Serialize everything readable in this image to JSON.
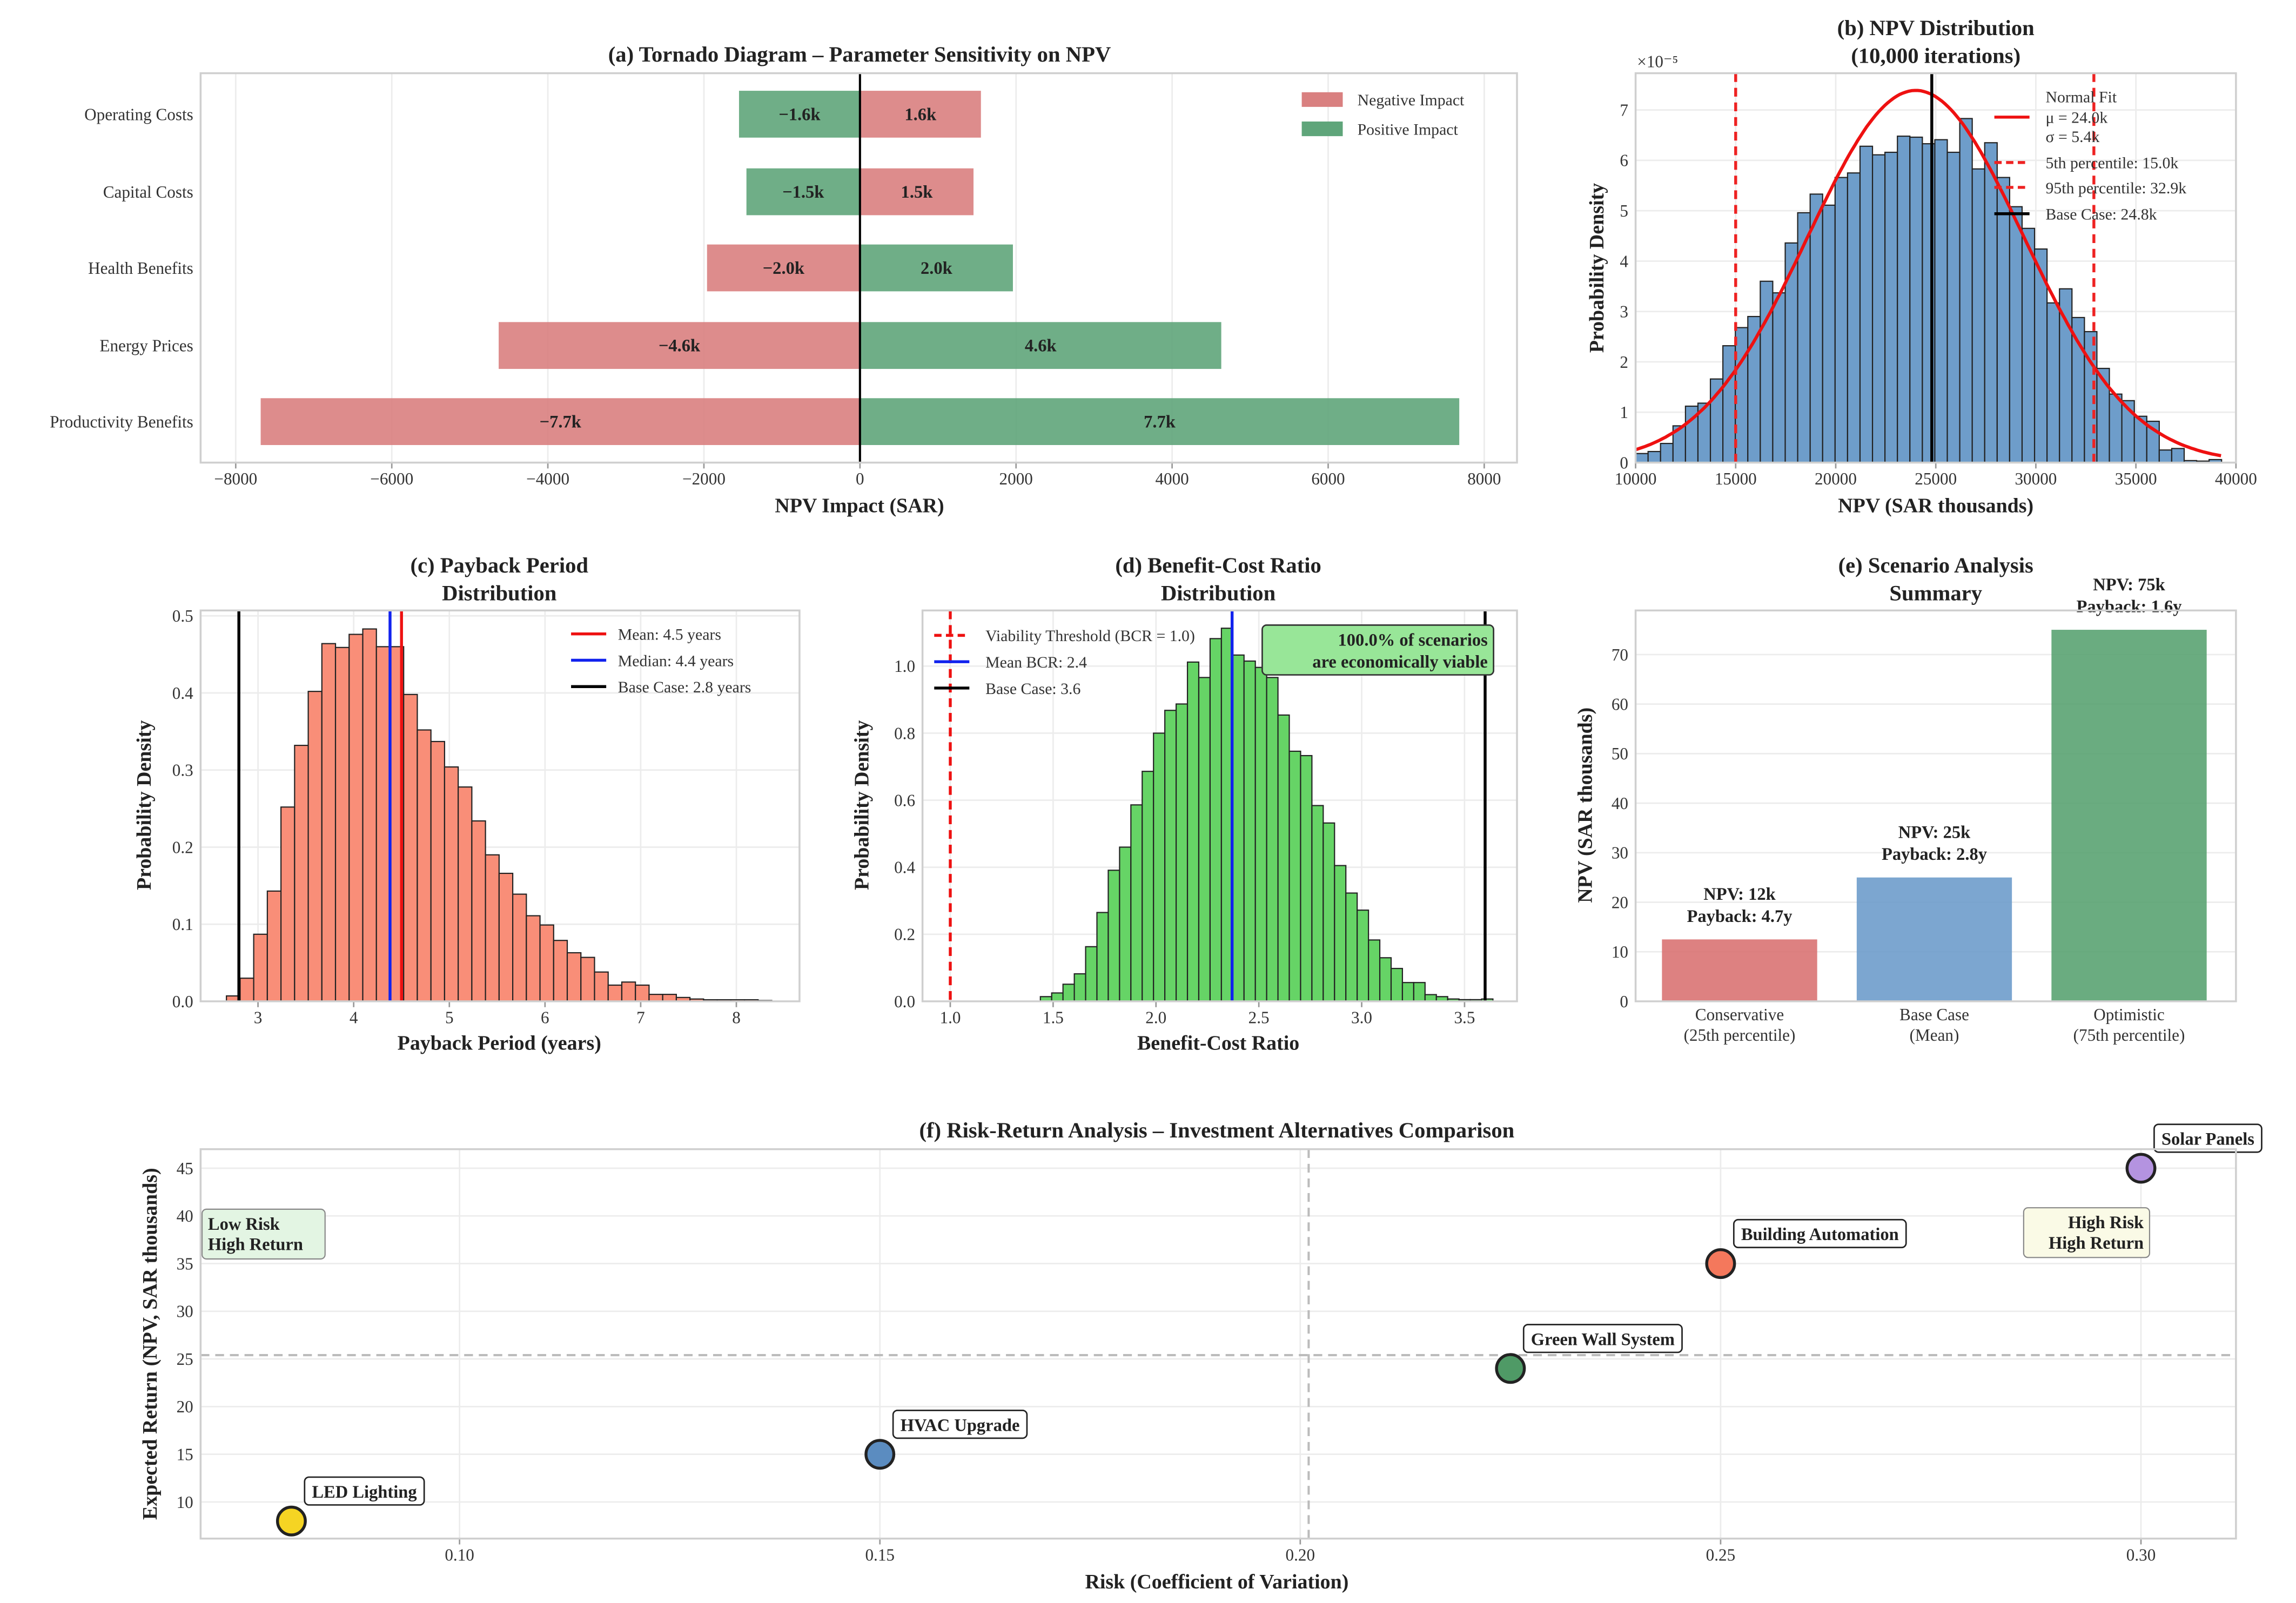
{
  "chart_data": [
    {
      "type": "bar",
      "orientation": "horizontal",
      "title": "(a) Tornado Diagram – Parameter Sensitivity on NPV",
      "xlabel": "NPV Impact (SAR)",
      "xlim": [
        -8450,
        8420
      ],
      "xticks": [
        "−8000",
        "−6000",
        "−4000",
        "−2000",
        "0",
        "2000",
        "4000",
        "6000",
        "8000"
      ],
      "legend": {
        "position": "top-right",
        "entries": [
          {
            "label": "Negative Impact",
            "color": "#d98080"
          },
          {
            "label": "Positive Impact",
            "color": "#5fa57a"
          }
        ]
      },
      "bars": [
        {
          "category": "Operating Costs",
          "low": -1550,
          "high": 1550,
          "low_label": "−1.6k",
          "high_label": "1.6k",
          "low_color": "#5fa57a",
          "high_color": "#d98080"
        },
        {
          "category": "Capital Costs",
          "low": -1455,
          "high": 1455,
          "low_label": "−1.5k",
          "high_label": "1.5k",
          "low_color": "#5fa57a",
          "high_color": "#d98080"
        },
        {
          "category": "Health Benefits",
          "low": -1960,
          "high": 1960,
          "low_label": "−2.0k",
          "high_label": "2.0k",
          "low_color": "#d98080",
          "high_color": "#5fa57a"
        },
        {
          "category": "Energy Prices",
          "low": -4630,
          "high": 4630,
          "low_label": "−4.6k",
          "high_label": "4.6k",
          "low_color": "#d98080",
          "high_color": "#5fa57a"
        },
        {
          "category": "Productivity Benefits",
          "low": -7680,
          "high": 7680,
          "low_label": "−7.7k",
          "high_label": "7.7k",
          "low_color": "#d98080",
          "high_color": "#5fa57a"
        }
      ]
    },
    {
      "type": "bar",
      "subtype": "histogram",
      "title": "(b) NPV Distribution",
      "title_line2": "(10,000 iterations)",
      "xlabel": "NPV (SAR thousands)",
      "ylabel": "Probability Density",
      "y_scale_label": "×10⁻⁵",
      "xlim": [
        10000,
        40000
      ],
      "ylim": [
        0,
        7.73
      ],
      "xticks": [
        "10000",
        "15000",
        "20000",
        "25000",
        "30000",
        "35000",
        "40000"
      ],
      "yticks": [
        "0",
        "1",
        "2",
        "3",
        "4",
        "5",
        "6",
        "7"
      ],
      "bin_start": 10000,
      "bin_width": 623,
      "values": [
        0.18,
        0.22,
        0.38,
        0.73,
        1.12,
        1.18,
        1.66,
        2.32,
        2.68,
        2.9,
        3.6,
        3.37,
        4.36,
        4.96,
        5.33,
        5.11,
        5.66,
        5.75,
        6.28,
        6.11,
        6.16,
        6.48,
        6.46,
        6.33,
        6.41,
        6.16,
        6.83,
        5.83,
        6.35,
        5.66,
        5.08,
        4.65,
        4.24,
        3.17,
        3.45,
        2.88,
        2.6,
        1.87,
        1.36,
        1.23,
        0.92,
        0.82,
        0.25,
        0.28,
        0.04,
        0.03,
        0.06
      ],
      "bar_color": "#6e9dca",
      "normal_fit": {
        "mu": 24000,
        "sigma": 5400,
        "color": "#ee1111"
      },
      "lines": [
        {
          "x": 15000,
          "color": "#ee2222",
          "style": "dashed"
        },
        {
          "x": 32900,
          "color": "#ee2222",
          "style": "dashed"
        },
        {
          "x": 24800,
          "color": "#000000",
          "style": "solid"
        }
      ],
      "legend": {
        "position": "top-right",
        "entries": [
          "Normal Fit",
          "μ = 24.0k",
          "σ = 5.4k",
          "5th percentile: 15.0k",
          "95th percentile: 32.9k",
          "Base Case: 24.8k"
        ]
      }
    },
    {
      "type": "bar",
      "subtype": "histogram",
      "title": "(c) Payback Period",
      "title_line2": "Distribution",
      "xlabel": "Payback Period (years)",
      "ylabel": "Probability Density",
      "xlim": [
        2.4,
        8.66
      ],
      "ylim": [
        0,
        0.507
      ],
      "xticks": [
        "3",
        "4",
        "5",
        "6",
        "7",
        "8"
      ],
      "yticks": [
        "0.0",
        "0.1",
        "0.2",
        "0.3",
        "0.4",
        "0.5"
      ],
      "bin_start": 2.67,
      "bin_width": 0.1425,
      "values": [
        0.007,
        0.03,
        0.087,
        0.143,
        0.252,
        0.332,
        0.402,
        0.464,
        0.459,
        0.476,
        0.483,
        0.46,
        0.46,
        0.398,
        0.352,
        0.337,
        0.304,
        0.278,
        0.234,
        0.19,
        0.166,
        0.139,
        0.111,
        0.099,
        0.079,
        0.063,
        0.057,
        0.038,
        0.021,
        0.025,
        0.021,
        0.009,
        0.009,
        0.005,
        0.003,
        0.002,
        0.002,
        0.002,
        0.002,
        0.001
      ],
      "bar_color": "#f98e78",
      "lines": [
        {
          "x": 4.5,
          "color": "#ee1111",
          "style": "solid"
        },
        {
          "x": 4.38,
          "color": "#1122ee",
          "style": "solid"
        },
        {
          "x": 2.8,
          "color": "#000000",
          "style": "solid"
        }
      ],
      "legend": {
        "position": "top-right",
        "entries": [
          "Mean: 4.5 years",
          "Median: 4.4 years",
          "Base Case: 2.8 years"
        ]
      }
    },
    {
      "type": "bar",
      "subtype": "histogram",
      "title": "(d) Benefit-Cost Ratio",
      "title_line2": "Distribution",
      "xlabel": "Benefit-Cost Ratio",
      "ylabel": "Probability Density",
      "xlim": [
        0.865,
        3.755
      ],
      "ylim": [
        0,
        1.166
      ],
      "xticks": [
        "1.0",
        "1.5",
        "2.0",
        "2.5",
        "3.0",
        "3.5"
      ],
      "yticks": [
        "0.0",
        "0.2",
        "0.4",
        "0.6",
        "0.8",
        "1.0"
      ],
      "bin_start": 1.438,
      "bin_width": 0.055,
      "values": [
        0.014,
        0.025,
        0.051,
        0.082,
        0.163,
        0.265,
        0.391,
        0.46,
        0.586,
        0.686,
        0.8,
        0.868,
        0.887,
        1.012,
        0.966,
        1.082,
        1.113,
        1.033,
        1.015,
        0.996,
        0.966,
        0.854,
        0.746,
        0.733,
        0.584,
        0.532,
        0.405,
        0.323,
        0.272,
        0.183,
        0.13,
        0.098,
        0.056,
        0.056,
        0.02,
        0.014,
        0.007,
        0.005,
        0.005,
        0.007
      ],
      "bar_color": "#66d466",
      "lines": [
        {
          "x": 1.0,
          "color": "#ee1111",
          "style": "dashed"
        },
        {
          "x": 2.37,
          "color": "#1122ee",
          "style": "solid"
        },
        {
          "x": 3.6,
          "color": "#000000",
          "style": "solid"
        }
      ],
      "legend": {
        "position": "top-left",
        "entries": [
          "Viability Threshold (BCR = 1.0)",
          "Mean BCR: 2.4",
          "Base Case: 3.6"
        ]
      },
      "annotation": [
        "100.0% of scenarios",
        "are economically viable"
      ]
    },
    {
      "type": "bar",
      "title": "(e) Scenario Analysis",
      "title_line2": "Summary",
      "ylabel": "NPV (SAR thousands)",
      "ylim": [
        0,
        78.9
      ],
      "yticks": [
        "0",
        "10",
        "20",
        "30",
        "40",
        "50",
        "60",
        "70"
      ],
      "categories": [
        [
          "Conservative",
          "(25th percentile)"
        ],
        [
          "Base Case",
          "(Mean)"
        ],
        [
          "Optimistic",
          "(75th percentile)"
        ]
      ],
      "values": [
        12.5,
        25,
        75
      ],
      "colors": [
        "#d97373",
        "#6e9ccb",
        "#5aa372"
      ],
      "labels": [
        [
          "NPV: 12k",
          "Payback: 4.7y"
        ],
        [
          "NPV: 25k",
          "Payback: 2.8y"
        ],
        [
          "NPV: 75k",
          "Payback: 1.6y"
        ]
      ]
    },
    {
      "type": "scatter",
      "title": "(f) Risk-Return Analysis – Investment Alternatives Comparison",
      "xlabel": "Risk (Coefficient of Variation)",
      "ylabel": "Expected Return (NPV, SAR thousands)",
      "xlim": [
        0.0692,
        0.3113
      ],
      "ylim": [
        6.16,
        47.0
      ],
      "xticks": [
        "0.10",
        "0.15",
        "0.20",
        "0.25",
        "0.30"
      ],
      "yticks": [
        "10",
        "15",
        "20",
        "25",
        "30",
        "35",
        "40",
        "45"
      ],
      "points": [
        {
          "name": "LED Lighting",
          "x": 0.08,
          "y": 8,
          "color": "#f5d423"
        },
        {
          "name": "HVAC Upgrade",
          "x": 0.15,
          "y": 15,
          "color": "#5b8cc0"
        },
        {
          "name": "Green Wall System",
          "x": 0.225,
          "y": 24,
          "color": "#4f9a66"
        },
        {
          "name": "Building Automation",
          "x": 0.25,
          "y": 35,
          "color": "#f4785c"
        },
        {
          "name": "Solar Panels",
          "x": 0.3,
          "y": 45,
          "color": "#b493e0"
        }
      ],
      "quadrants": [
        [
          "Low Risk",
          "High Return"
        ],
        [
          "High Risk",
          "High Return"
        ]
      ]
    }
  ]
}
